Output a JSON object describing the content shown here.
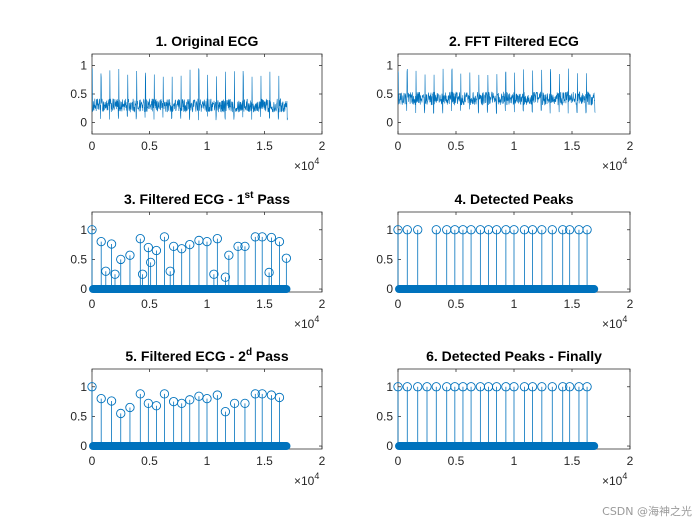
{
  "figure": {
    "background": "#ffffff",
    "series_color": "#0072BD"
  },
  "watermark": "CSDN @海神之光",
  "chart_data": [
    {
      "type": "line",
      "title": "1. Original ECG",
      "xlim": [
        0,
        20000
      ],
      "ylim": [
        -0.2,
        1.2
      ],
      "xticks": [
        0,
        0.5,
        1,
        1.5,
        2
      ],
      "xtick_labels": [
        "0",
        "0.5",
        "1",
        "1.5",
        "2"
      ],
      "yticks": [
        0,
        0.5,
        1
      ],
      "ytick_labels": [
        "0",
        "0.5",
        "1"
      ],
      "x_exponent": "×10",
      "x_exponent_power": "4",
      "signal": {
        "length": 17000,
        "baseline": 0.3,
        "noise_amplitude": 0.12,
        "peak_count": 22,
        "peak_height": 0.95
      }
    },
    {
      "type": "line",
      "title": "2. FFT Filtered ECG",
      "xlim": [
        0,
        20000
      ],
      "ylim": [
        -0.2,
        1.2
      ],
      "xticks": [
        0,
        0.5,
        1,
        1.5,
        2
      ],
      "xtick_labels": [
        "0",
        "0.5",
        "1",
        "1.5",
        "2"
      ],
      "yticks": [
        0,
        0.5,
        1
      ],
      "ytick_labels": [
        "0",
        "0.5",
        "1"
      ],
      "x_exponent": "×10",
      "x_exponent_power": "4",
      "signal": {
        "length": 17000,
        "baseline": 0.42,
        "noise_amplitude": 0.12,
        "peak_count": 22,
        "peak_height": 0.95
      }
    },
    {
      "type": "stem",
      "title_parts": [
        "3. Filtered ECG - 1",
        "st",
        " Pass"
      ],
      "xlim": [
        0,
        20000
      ],
      "ylim": [
        -0.05,
        1.3
      ],
      "xticks": [
        0,
        0.5,
        1,
        1.5,
        2
      ],
      "xtick_labels": [
        "0",
        "0.5",
        "1",
        "1.5",
        "2"
      ],
      "yticks": [
        0,
        0.5,
        1
      ],
      "ytick_labels": [
        "0",
        "0.5",
        "1"
      ],
      "x_exponent": "×10",
      "x_exponent_power": "4",
      "zero_line": [
        0,
        17000
      ],
      "x": [
        0,
        800,
        1200,
        1700,
        2000,
        2500,
        3300,
        4200,
        4400,
        4900,
        5100,
        5600,
        6300,
        6800,
        7100,
        7800,
        8500,
        9300,
        10000,
        10600,
        10900,
        11600,
        11900,
        12700,
        13300,
        14200,
        14800,
        15400,
        15600,
        16300,
        16900
      ],
      "y": [
        1.0,
        0.8,
        0.3,
        0.76,
        0.25,
        0.5,
        0.57,
        0.85,
        0.25,
        0.7,
        0.45,
        0.65,
        0.88,
        0.3,
        0.72,
        0.68,
        0.75,
        0.82,
        0.8,
        0.25,
        0.85,
        0.2,
        0.57,
        0.72,
        0.72,
        0.88,
        0.88,
        0.28,
        0.87,
        0.8,
        0.52
      ]
    },
    {
      "type": "stem",
      "title": "4. Detected Peaks",
      "xlim": [
        0,
        20000
      ],
      "ylim": [
        -0.05,
        1.3
      ],
      "xticks": [
        0,
        0.5,
        1,
        1.5,
        2
      ],
      "xtick_labels": [
        "0",
        "0.5",
        "1",
        "1.5",
        "2"
      ],
      "yticks": [
        0,
        0.5,
        1
      ],
      "ytick_labels": [
        "0",
        "0.5",
        "1"
      ],
      "x_exponent": "×10",
      "x_exponent_power": "4",
      "zero_line": [
        0,
        17000
      ],
      "x": [
        0,
        800,
        1700,
        3300,
        4200,
        4900,
        5600,
        6300,
        7100,
        7800,
        8500,
        9300,
        10000,
        10900,
        11600,
        12400,
        13300,
        14200,
        14800,
        15600,
        16300
      ],
      "y": [
        1.0,
        1.0,
        1.0,
        1.0,
        1.0,
        1.0,
        1.0,
        1.0,
        1.0,
        1.0,
        1.0,
        1.0,
        1.0,
        1.0,
        1.0,
        1.0,
        1.0,
        1.0,
        1.0,
        1.0,
        1.0
      ]
    },
    {
      "type": "stem",
      "title_parts": [
        "5. Filtered ECG - 2",
        "d",
        " Pass"
      ],
      "xlim": [
        0,
        20000
      ],
      "ylim": [
        -0.05,
        1.3
      ],
      "xticks": [
        0,
        0.5,
        1,
        1.5,
        2
      ],
      "xtick_labels": [
        "0",
        "0.5",
        "1",
        "1.5",
        "2"
      ],
      "yticks": [
        0,
        0.5,
        1
      ],
      "ytick_labels": [
        "0",
        "0.5",
        "1"
      ],
      "x_exponent": "×10",
      "x_exponent_power": "4",
      "zero_line": [
        0,
        17000
      ],
      "x": [
        0,
        800,
        1700,
        2500,
        3300,
        4200,
        4900,
        5600,
        6300,
        7100,
        7800,
        8500,
        9300,
        10000,
        10900,
        11600,
        12400,
        13300,
        14200,
        14800,
        15600,
        16300
      ],
      "y": [
        1.0,
        0.8,
        0.76,
        0.55,
        0.65,
        0.88,
        0.72,
        0.68,
        0.88,
        0.75,
        0.72,
        0.78,
        0.84,
        0.8,
        0.86,
        0.58,
        0.72,
        0.72,
        0.88,
        0.88,
        0.86,
        0.82
      ]
    },
    {
      "type": "stem",
      "title": "6. Detected Peaks - Finally",
      "xlim": [
        0,
        20000
      ],
      "ylim": [
        -0.05,
        1.3
      ],
      "xticks": [
        0,
        0.5,
        1,
        1.5,
        2
      ],
      "xtick_labels": [
        "0",
        "0.5",
        "1",
        "1.5",
        "2"
      ],
      "yticks": [
        0,
        0.5,
        1
      ],
      "ytick_labels": [
        "0",
        "0.5",
        "1"
      ],
      "x_exponent": "×10",
      "x_exponent_power": "4",
      "zero_line": [
        0,
        17000
      ],
      "x": [
        0,
        800,
        1700,
        2500,
        3300,
        4200,
        4900,
        5600,
        6300,
        7100,
        7800,
        8500,
        9300,
        10000,
        10900,
        11600,
        12400,
        13300,
        14200,
        14800,
        15600,
        16300
      ],
      "y": [
        1.0,
        1.0,
        1.0,
        1.0,
        1.0,
        1.0,
        1.0,
        1.0,
        1.0,
        1.0,
        1.0,
        1.0,
        1.0,
        1.0,
        1.0,
        1.0,
        1.0,
        1.0,
        1.0,
        1.0,
        1.0,
        1.0
      ]
    }
  ]
}
